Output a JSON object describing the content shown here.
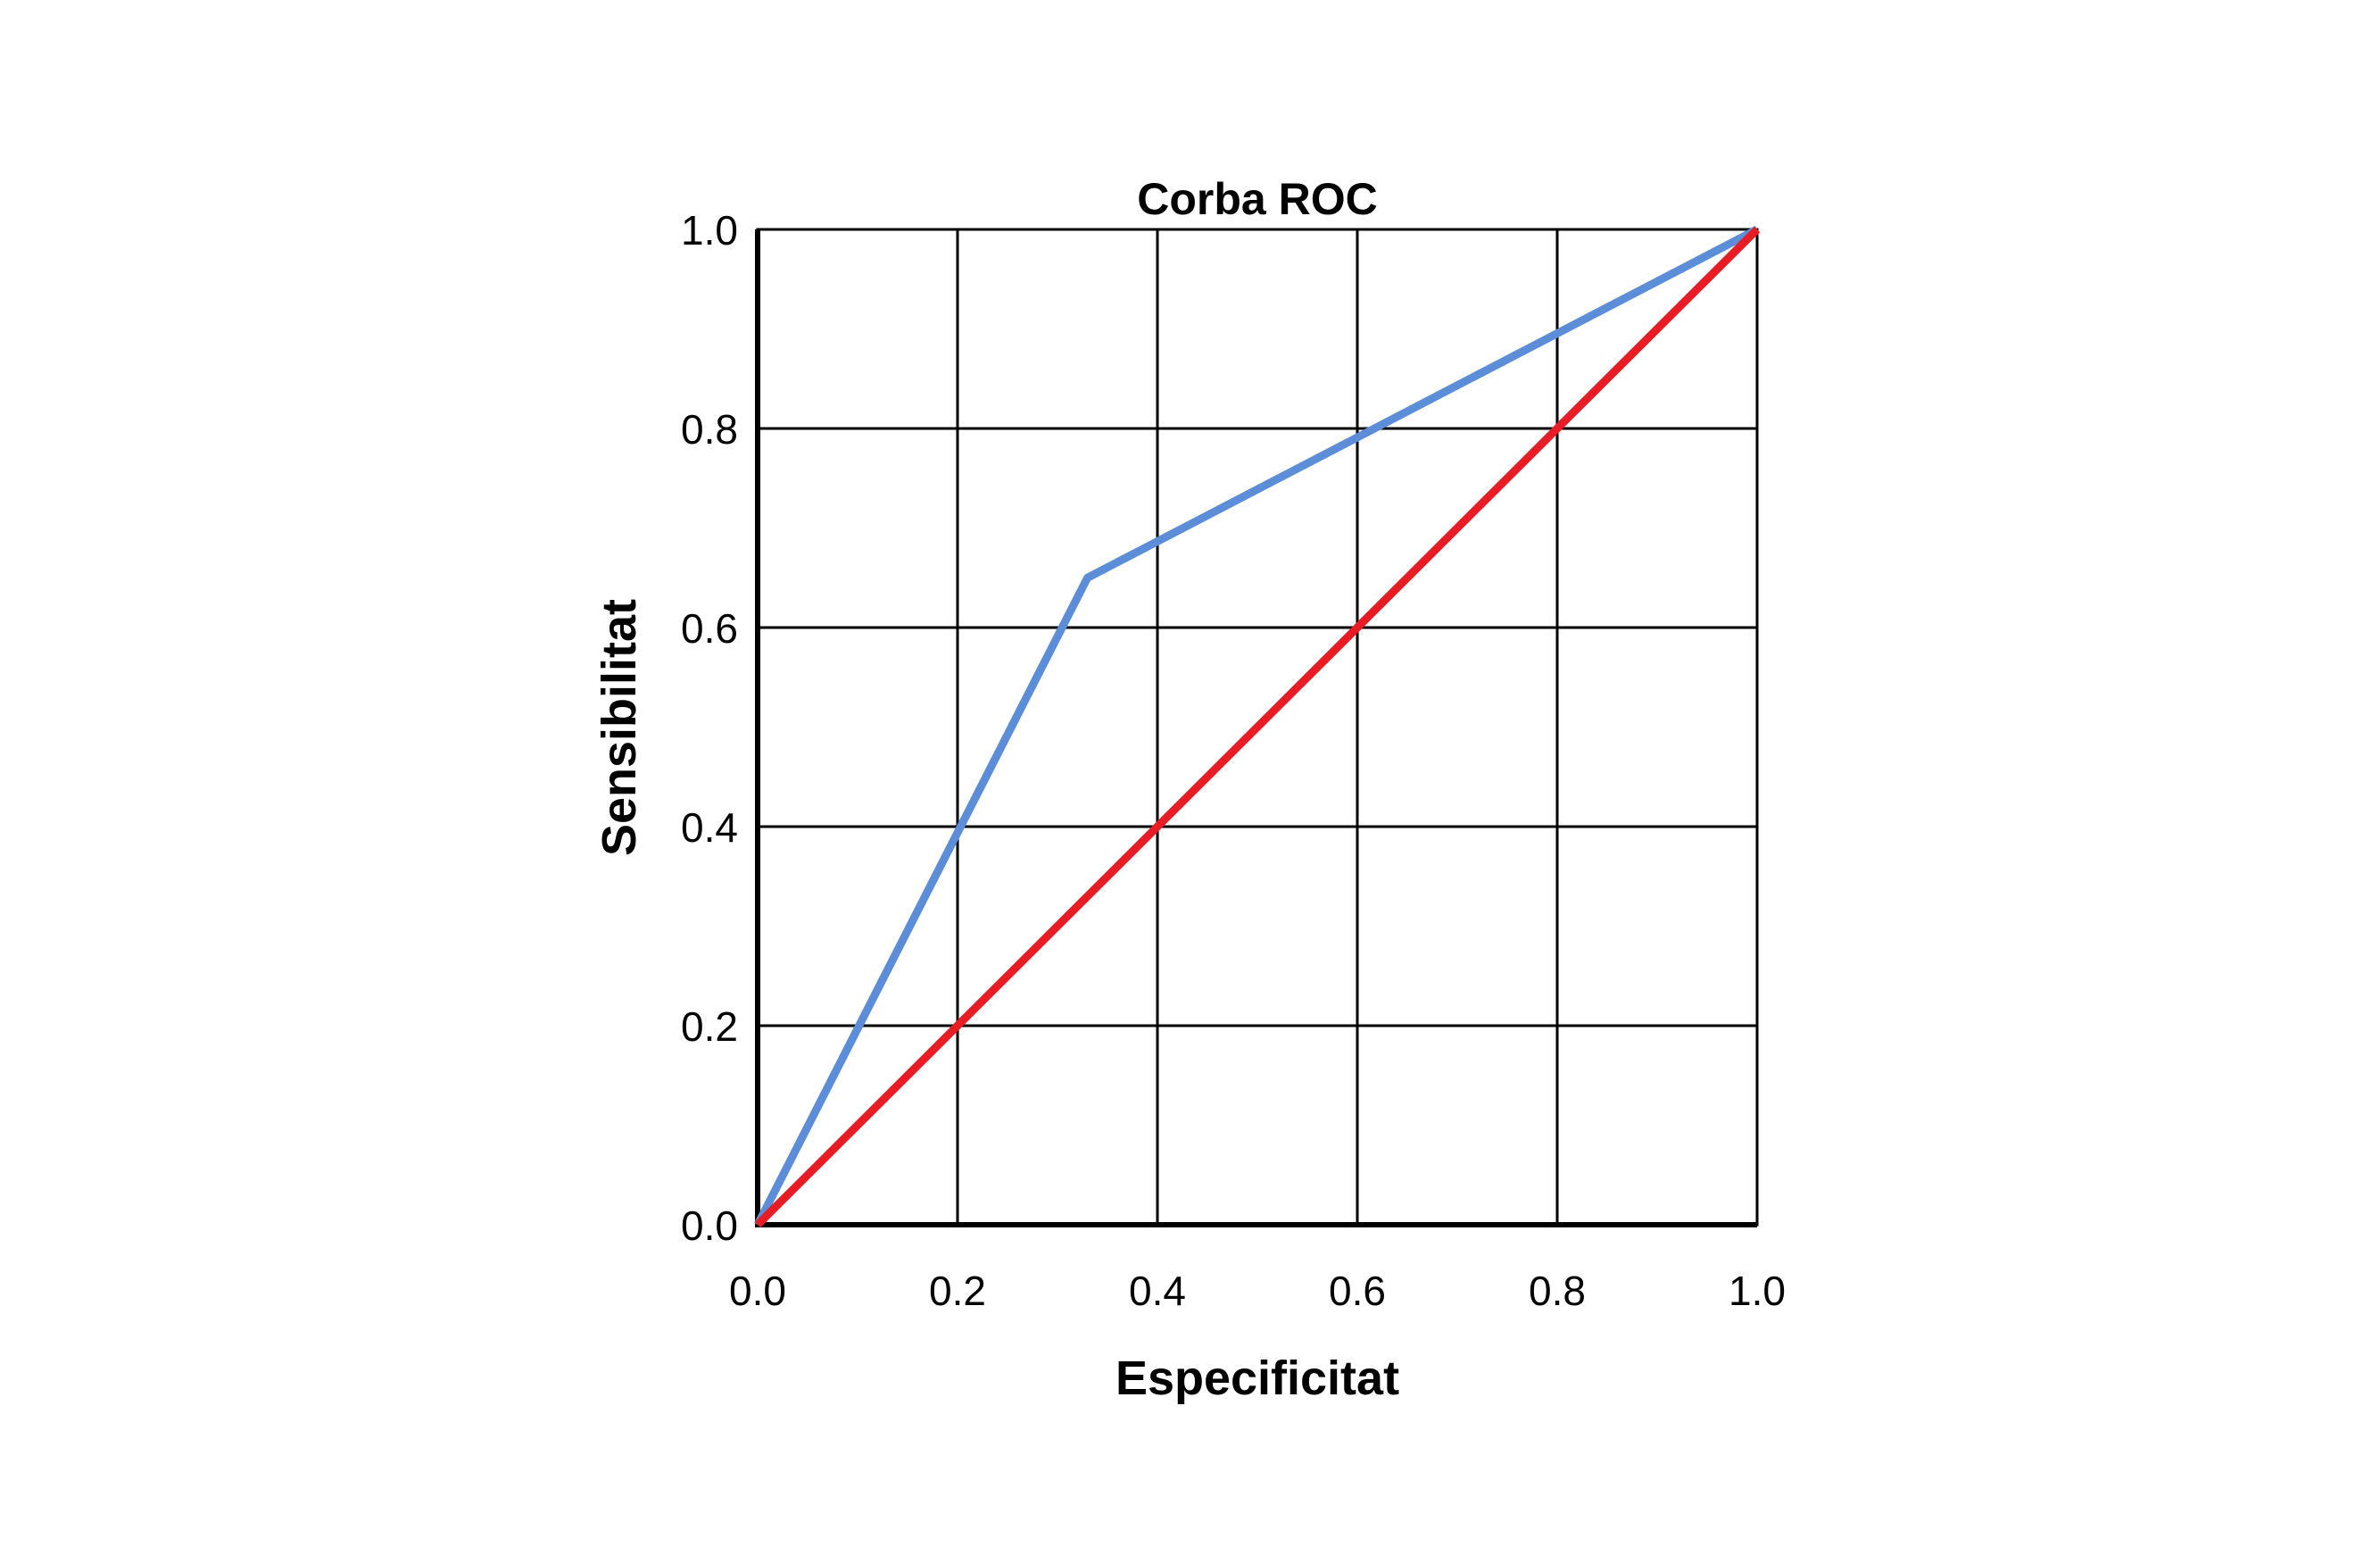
{
  "figure": {
    "background_color": "#ffffff",
    "axis_color": "#000000",
    "grid_color": "#000000"
  },
  "chart_data": {
    "type": "line",
    "title": "Corba ROC",
    "xlabel": "Especificitat",
    "ylabel": "Sensibilitat",
    "xlim": [
      0.0,
      1.0
    ],
    "ylim": [
      0.0,
      1.0
    ],
    "grid": true,
    "framed": true,
    "legend": false,
    "xticks": [
      {
        "v": 0.0,
        "label": "0.0"
      },
      {
        "v": 0.2,
        "label": "0.2"
      },
      {
        "v": 0.4,
        "label": "0.4"
      },
      {
        "v": 0.6,
        "label": "0.6"
      },
      {
        "v": 0.8,
        "label": "0.8"
      },
      {
        "v": 1.0,
        "label": "1.0"
      }
    ],
    "yticks": [
      {
        "v": 0.0,
        "label": "0.0"
      },
      {
        "v": 0.2,
        "label": "0.2"
      },
      {
        "v": 0.4,
        "label": "0.4"
      },
      {
        "v": 0.6,
        "label": "0.6"
      },
      {
        "v": 0.8,
        "label": "0.8"
      },
      {
        "v": 1.0,
        "label": "1.0"
      }
    ],
    "series": [
      {
        "name": "roc_curve",
        "color": "#5b8dd9",
        "stroke_width": 9,
        "points": [
          [
            0.0,
            0.0
          ],
          [
            0.33,
            0.65
          ],
          [
            1.0,
            1.0
          ]
        ]
      },
      {
        "name": "reference_diagonal",
        "color": "#e81c24",
        "stroke_width": 9,
        "points": [
          [
            0.0,
            0.0
          ],
          [
            1.0,
            1.0
          ]
        ]
      }
    ]
  }
}
